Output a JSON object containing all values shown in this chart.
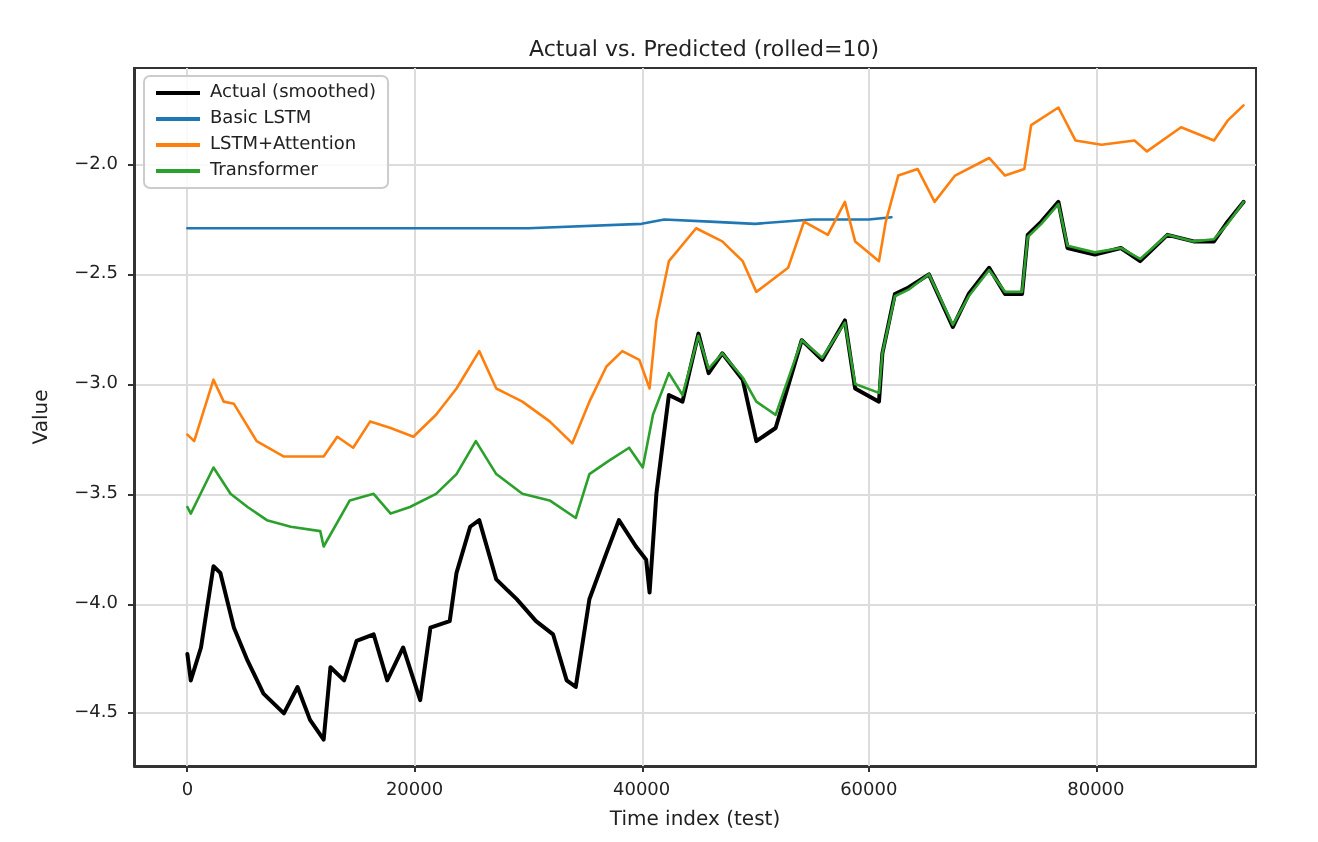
{
  "chart_data": {
    "type": "line",
    "title": "Actual vs. Predicted (rolled=10)",
    "xlabel": "Time index (test)",
    "ylabel": "Value",
    "xlim": [
      -4700,
      94100
    ],
    "xticks": [
      0,
      20000,
      40000,
      60000,
      80000
    ],
    "ylim": [
      -4.74,
      -1.56
    ],
    "yticks": [
      {
        "value": -4.5,
        "label": "−4.5"
      },
      {
        "value": -4.0,
        "label": "−4.0"
      },
      {
        "value": -3.5,
        "label": "−3.5"
      },
      {
        "value": -3.0,
        "label": "−3.0"
      },
      {
        "value": -2.5,
        "label": "−2.5"
      },
      {
        "value": -2.0,
        "label": "−2.0"
      }
    ],
    "grid": true,
    "legend": "top left",
    "marker": "none",
    "line_style": "solid",
    "series": [
      {
        "name": "Actual (smoothed)",
        "color": "#000000",
        "x": [
          0,
          300,
          1200,
          2300,
          2900,
          4100,
          5300,
          6700,
          8500,
          9700,
          10800,
          12000,
          12600,
          13800,
          14900,
          16400,
          17600,
          19000,
          20500,
          21400,
          23100,
          23700,
          24900,
          25700,
          27200,
          29000,
          30700,
          32200,
          33400,
          34200,
          35400,
          36900,
          38000,
          39500,
          40400,
          40700,
          41300,
          42400,
          43600,
          45000,
          45900,
          47100,
          48900,
          50100,
          51800,
          54100,
          55900,
          57900,
          58800,
          60900,
          61200,
          62300,
          63500,
          65300,
          67400,
          68800,
          70600,
          72000,
          73500,
          74000,
          75200,
          76700,
          77500,
          79900,
          82200,
          83900,
          86300,
          88600,
          90400,
          91600,
          93000
        ],
        "values": [
          -4.23,
          -4.35,
          -4.2,
          -3.83,
          -3.86,
          -4.11,
          -4.26,
          -4.41,
          -4.5,
          -4.38,
          -4.53,
          -4.62,
          -4.29,
          -4.35,
          -4.17,
          -4.14,
          -4.35,
          -4.2,
          -4.44,
          -4.11,
          -4.08,
          -3.86,
          -3.65,
          -3.62,
          -3.89,
          -3.98,
          -4.08,
          -4.14,
          -4.35,
          -4.38,
          -3.98,
          -3.77,
          -3.62,
          -3.74,
          -3.8,
          -3.95,
          -3.5,
          -3.05,
          -3.08,
          -2.77,
          -2.95,
          -2.86,
          -2.98,
          -3.26,
          -3.2,
          -2.8,
          -2.89,
          -2.71,
          -3.02,
          -3.08,
          -2.86,
          -2.59,
          -2.56,
          -2.5,
          -2.74,
          -2.59,
          -2.47,
          -2.59,
          -2.59,
          -2.32,
          -2.26,
          -2.17,
          -2.38,
          -2.41,
          -2.38,
          -2.44,
          -2.32,
          -2.35,
          -2.35,
          -2.26,
          -2.17
        ]
      },
      {
        "name": "Basic LSTM",
        "color": "#1f77b4",
        "x": [
          0,
          10000,
          20000,
          30000,
          40000,
          42000,
          46000,
          50000,
          55000,
          60000,
          62000
        ],
        "values": [
          -2.29,
          -2.29,
          -2.29,
          -2.29,
          -2.27,
          -2.25,
          -2.26,
          -2.27,
          -2.25,
          -2.25,
          -2.24
        ]
      },
      {
        "name": "LSTM+Attention",
        "color": "#ff7f0e",
        "x": [
          0,
          600,
          2300,
          3200,
          4100,
          6100,
          8500,
          12000,
          13200,
          14600,
          16100,
          17900,
          19900,
          21900,
          23700,
          25700,
          27200,
          29500,
          31900,
          33900,
          35400,
          36900,
          38300,
          39800,
          40700,
          41300,
          42400,
          44800,
          47100,
          48900,
          50100,
          52900,
          54300,
          56400,
          57900,
          58800,
          60900,
          61500,
          62600,
          64300,
          65800,
          67600,
          70600,
          72000,
          73700,
          74300,
          76700,
          78200,
          80500,
          83400,
          84500,
          87500,
          90400,
          91600,
          93000
        ],
        "values": [
          -3.23,
          -3.26,
          -2.98,
          -3.08,
          -3.09,
          -3.26,
          -3.33,
          -3.33,
          -3.24,
          -3.29,
          -3.17,
          -3.2,
          -3.24,
          -3.14,
          -3.02,
          -2.85,
          -3.02,
          -3.08,
          -3.17,
          -3.27,
          -3.08,
          -2.92,
          -2.85,
          -2.89,
          -3.02,
          -2.71,
          -2.44,
          -2.29,
          -2.35,
          -2.44,
          -2.58,
          -2.47,
          -2.26,
          -2.32,
          -2.17,
          -2.35,
          -2.44,
          -2.26,
          -2.05,
          -2.02,
          -2.17,
          -2.05,
          -1.97,
          -2.05,
          -2.02,
          -1.82,
          -1.74,
          -1.89,
          -1.91,
          -1.89,
          -1.94,
          -1.83,
          -1.89,
          -1.8,
          -1.73
        ]
      },
      {
        "name": "Transformer",
        "color": "#2ca02c",
        "x": [
          0,
          300,
          2300,
          3800,
          5300,
          7000,
          9100,
          11700,
          12000,
          14300,
          16400,
          17900,
          19600,
          21900,
          23700,
          25400,
          27200,
          29500,
          31900,
          34200,
          35400,
          37100,
          38900,
          40100,
          41000,
          42400,
          43600,
          45000,
          45900,
          47100,
          48900,
          50100,
          51800,
          54100,
          55900,
          57900,
          58800,
          60900,
          61200,
          62300,
          63500,
          65300,
          67400,
          68800,
          70600,
          72000,
          73500,
          74000,
          75200,
          76700,
          77500,
          79900,
          82200,
          83900,
          86300,
          88600,
          90400,
          91600,
          93000
        ],
        "values": [
          -3.56,
          -3.59,
          -3.38,
          -3.5,
          -3.56,
          -3.62,
          -3.65,
          -3.67,
          -3.74,
          -3.53,
          -3.5,
          -3.59,
          -3.56,
          -3.5,
          -3.41,
          -3.26,
          -3.41,
          -3.5,
          -3.53,
          -3.61,
          -3.41,
          -3.35,
          -3.29,
          -3.38,
          -3.14,
          -2.95,
          -3.05,
          -2.78,
          -2.93,
          -2.86,
          -2.97,
          -3.08,
          -3.14,
          -2.8,
          -2.88,
          -2.72,
          -3.0,
          -3.04,
          -2.86,
          -2.6,
          -2.57,
          -2.5,
          -2.73,
          -2.6,
          -2.48,
          -2.58,
          -2.58,
          -2.33,
          -2.27,
          -2.18,
          -2.37,
          -2.4,
          -2.38,
          -2.43,
          -2.32,
          -2.35,
          -2.34,
          -2.27,
          -2.17
        ]
      }
    ]
  }
}
